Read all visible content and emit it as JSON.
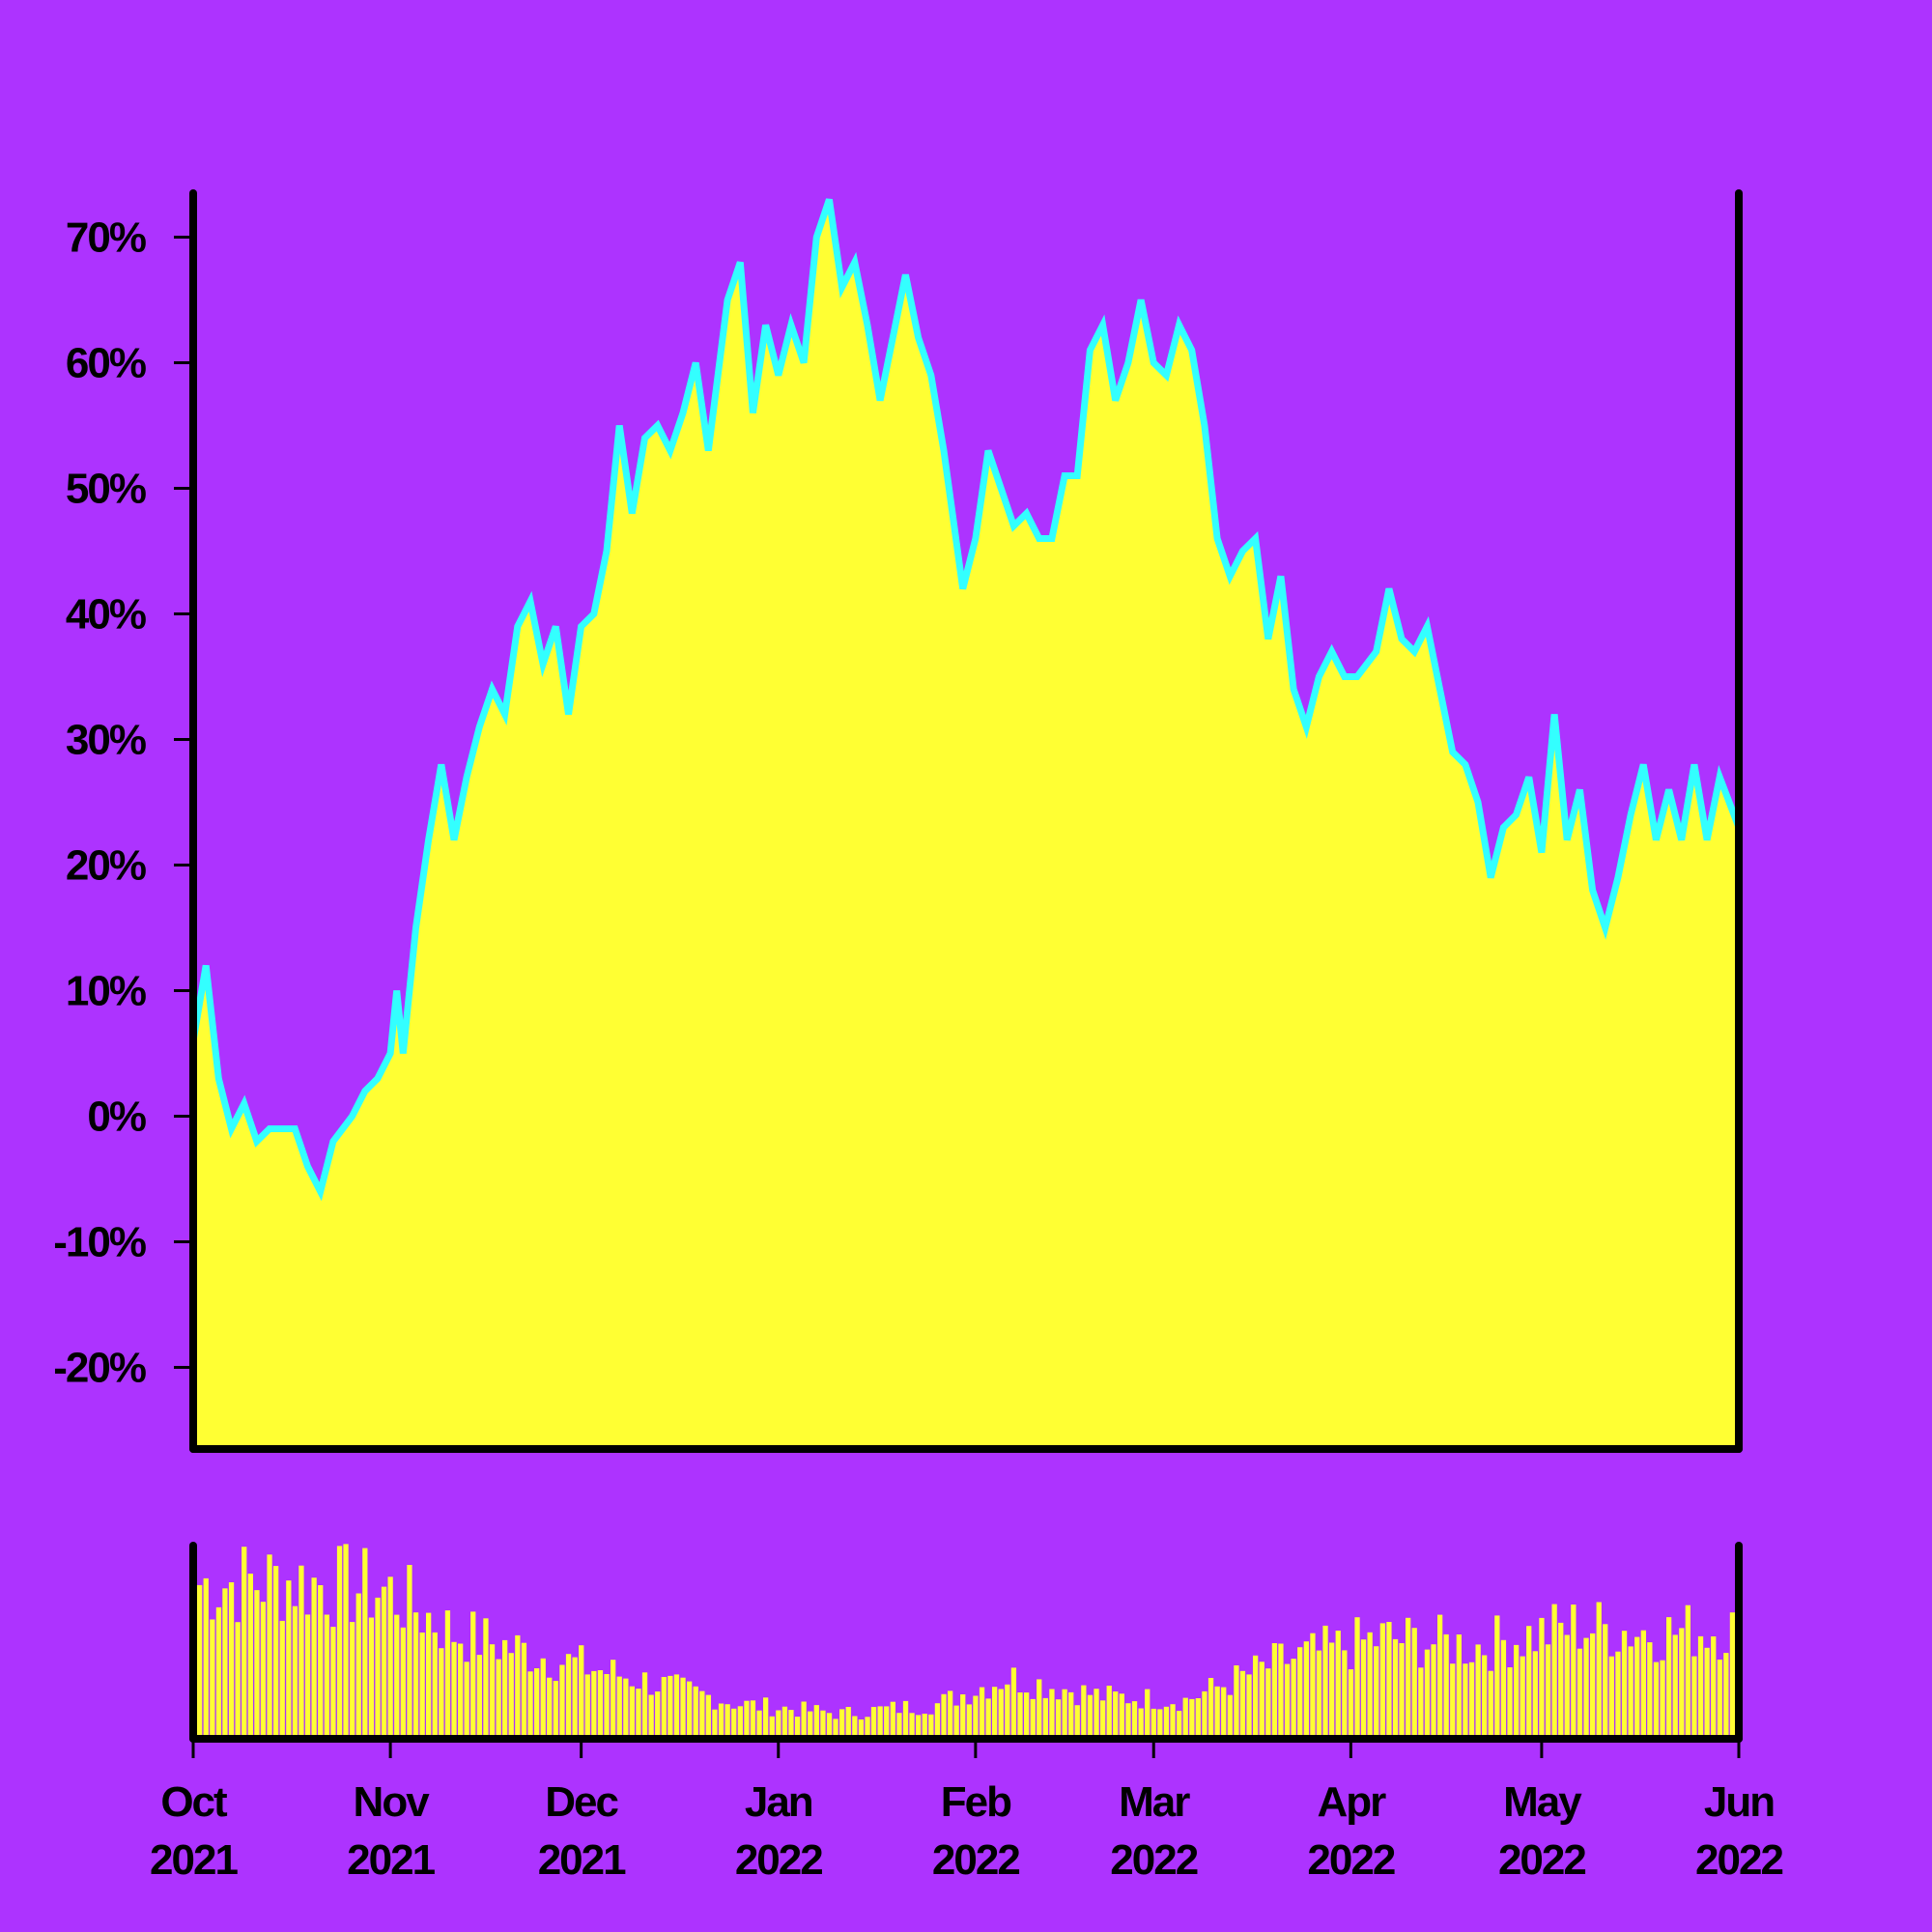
{
  "colors": {
    "background": "#ad33ff",
    "area_fill": "#ffff33",
    "line": "#33ffff",
    "axis": "#000000"
  },
  "chart_data": [
    {
      "type": "area",
      "title": "",
      "xlabel": "",
      "ylabel": "",
      "x_range": [
        "2021-10-01",
        "2022-06-01"
      ],
      "ylim": [
        -26.5,
        73.5
      ],
      "y_ticks": [
        -20,
        -10,
        0,
        10,
        20,
        30,
        40,
        50,
        60,
        70
      ],
      "y_tick_labels": [
        "-20%",
        "-10%",
        "0%",
        "10%",
        "20%",
        "30%",
        "40%",
        "50%",
        "60%",
        "70%"
      ],
      "grid": false,
      "series": [
        {
          "points": [
            [
              "2021-10-01",
              6
            ],
            [
              "2021-10-03",
              12
            ],
            [
              "2021-10-05",
              3
            ],
            [
              "2021-10-07",
              -1
            ],
            [
              "2021-10-09",
              1
            ],
            [
              "2021-10-11",
              -2
            ],
            [
              "2021-10-13",
              -1
            ],
            [
              "2021-10-15",
              -1
            ],
            [
              "2021-10-17",
              -1
            ],
            [
              "2021-10-19",
              -4
            ],
            [
              "2021-10-21",
              -6
            ],
            [
              "2021-10-23",
              -2
            ],
            [
              "2021-10-26",
              0
            ],
            [
              "2021-10-28",
              2
            ],
            [
              "2021-10-30",
              3
            ],
            [
              "2021-11-01",
              5
            ],
            [
              "2021-11-02",
              10
            ],
            [
              "2021-11-03",
              5
            ],
            [
              "2021-11-05",
              15
            ],
            [
              "2021-11-07",
              22
            ],
            [
              "2021-11-09",
              28
            ],
            [
              "2021-11-11",
              22
            ],
            [
              "2021-11-13",
              27
            ],
            [
              "2021-11-15",
              31
            ],
            [
              "2021-11-17",
              34
            ],
            [
              "2021-11-19",
              32
            ],
            [
              "2021-11-21",
              39
            ],
            [
              "2021-11-23",
              41
            ],
            [
              "2021-11-25",
              36
            ],
            [
              "2021-11-27",
              39
            ],
            [
              "2021-11-29",
              32
            ],
            [
              "2021-12-01",
              39
            ],
            [
              "2021-12-03",
              40
            ],
            [
              "2021-12-05",
              45
            ],
            [
              "2021-12-07",
              55
            ],
            [
              "2021-12-09",
              48
            ],
            [
              "2021-12-11",
              54
            ],
            [
              "2021-12-13",
              55
            ],
            [
              "2021-12-15",
              53
            ],
            [
              "2021-12-17",
              56
            ],
            [
              "2021-12-19",
              60
            ],
            [
              "2021-12-21",
              53
            ],
            [
              "2021-12-24",
              65
            ],
            [
              "2021-12-26",
              68
            ],
            [
              "2021-12-28",
              56
            ],
            [
              "2021-12-30",
              63
            ],
            [
              "2022-01-01",
              59
            ],
            [
              "2022-01-03",
              63
            ],
            [
              "2022-01-05",
              60
            ],
            [
              "2022-01-07",
              70
            ],
            [
              "2022-01-09",
              73
            ],
            [
              "2022-01-11",
              66
            ],
            [
              "2022-01-13",
              68
            ],
            [
              "2022-01-15",
              63
            ],
            [
              "2022-01-17",
              57
            ],
            [
              "2022-01-19",
              62
            ],
            [
              "2022-01-21",
              67
            ],
            [
              "2022-01-23",
              62
            ],
            [
              "2022-01-25",
              59
            ],
            [
              "2022-01-27",
              53
            ],
            [
              "2022-01-30",
              42
            ],
            [
              "2022-02-01",
              46
            ],
            [
              "2022-02-03",
              53
            ],
            [
              "2022-02-05",
              50
            ],
            [
              "2022-02-07",
              47
            ],
            [
              "2022-02-09",
              48
            ],
            [
              "2022-02-11",
              46
            ],
            [
              "2022-02-13",
              46
            ],
            [
              "2022-02-15",
              51
            ],
            [
              "2022-02-17",
              51
            ],
            [
              "2022-02-19",
              61
            ],
            [
              "2022-02-21",
              63
            ],
            [
              "2022-02-23",
              57
            ],
            [
              "2022-02-25",
              60
            ],
            [
              "2022-02-27",
              65
            ],
            [
              "2022-03-01",
              60
            ],
            [
              "2022-03-03",
              59
            ],
            [
              "2022-03-05",
              63
            ],
            [
              "2022-03-07",
              61
            ],
            [
              "2022-03-09",
              55
            ],
            [
              "2022-03-11",
              46
            ],
            [
              "2022-03-13",
              43
            ],
            [
              "2022-03-15",
              45
            ],
            [
              "2022-03-17",
              46
            ],
            [
              "2022-03-19",
              38
            ],
            [
              "2022-03-21",
              43
            ],
            [
              "2022-03-23",
              34
            ],
            [
              "2022-03-25",
              31
            ],
            [
              "2022-03-27",
              35
            ],
            [
              "2022-03-29",
              37
            ],
            [
              "2022-03-31",
              35
            ],
            [
              "2022-04-02",
              35
            ],
            [
              "2022-04-05",
              37
            ],
            [
              "2022-04-07",
              42
            ],
            [
              "2022-04-09",
              38
            ],
            [
              "2022-04-11",
              37
            ],
            [
              "2022-04-13",
              39
            ],
            [
              "2022-04-15",
              34
            ],
            [
              "2022-04-17",
              29
            ],
            [
              "2022-04-19",
              28
            ],
            [
              "2022-04-21",
              25
            ],
            [
              "2022-04-23",
              19
            ],
            [
              "2022-04-25",
              23
            ],
            [
              "2022-04-27",
              24
            ],
            [
              "2022-04-29",
              27
            ],
            [
              "2022-05-01",
              21
            ],
            [
              "2022-05-03",
              32
            ],
            [
              "2022-05-05",
              22
            ],
            [
              "2022-05-07",
              26
            ],
            [
              "2022-05-09",
              18
            ],
            [
              "2022-05-11",
              15
            ],
            [
              "2022-05-13",
              19
            ],
            [
              "2022-05-15",
              24
            ],
            [
              "2022-05-17",
              28
            ],
            [
              "2022-05-19",
              22
            ],
            [
              "2022-05-21",
              26
            ],
            [
              "2022-05-23",
              22
            ],
            [
              "2022-05-25",
              28
            ],
            [
              "2022-05-27",
              22
            ],
            [
              "2022-05-29",
              27
            ],
            [
              "2022-06-01",
              23
            ]
          ]
        }
      ]
    },
    {
      "type": "bar",
      "title": "",
      "xlabel": "",
      "ylabel": "",
      "x_range": [
        "2021-10-01",
        "2022-06-01"
      ],
      "ylim": [
        0,
        100
      ],
      "grid": false,
      "volume_profile": [
        [
          "2021-10-01",
          80
        ],
        [
          "2021-10-15",
          82
        ],
        [
          "2021-10-31",
          76
        ],
        [
          "2021-11-10",
          55
        ],
        [
          "2021-11-25",
          42
        ],
        [
          "2021-12-10",
          30
        ],
        [
          "2021-12-25",
          18
        ],
        [
          "2022-01-10",
          13
        ],
        [
          "2022-01-25",
          18
        ],
        [
          "2022-02-05",
          32
        ],
        [
          "2022-02-20",
          22
        ],
        [
          "2022-03-05",
          20
        ],
        [
          "2022-03-20",
          40
        ],
        [
          "2022-04-05",
          52
        ],
        [
          "2022-04-20",
          48
        ],
        [
          "2022-05-05",
          58
        ],
        [
          "2022-05-20",
          55
        ],
        [
          "2022-06-01",
          58
        ]
      ],
      "x_ticks": [
        "2021-10-01",
        "2021-11-01",
        "2021-12-01",
        "2022-01-01",
        "2022-02-01",
        "2022-03-01",
        "2022-04-01",
        "2022-05-01",
        "2022-06-01"
      ],
      "x_tick_labels": [
        [
          "Oct",
          "2021"
        ],
        [
          "Nov",
          "2021"
        ],
        [
          "Dec",
          "2021"
        ],
        [
          "Jan",
          "2022"
        ],
        [
          "Feb",
          "2022"
        ],
        [
          "Mar",
          "2022"
        ],
        [
          "Apr",
          "2022"
        ],
        [
          "May",
          "2022"
        ],
        [
          "Jun",
          "2022"
        ]
      ]
    }
  ]
}
